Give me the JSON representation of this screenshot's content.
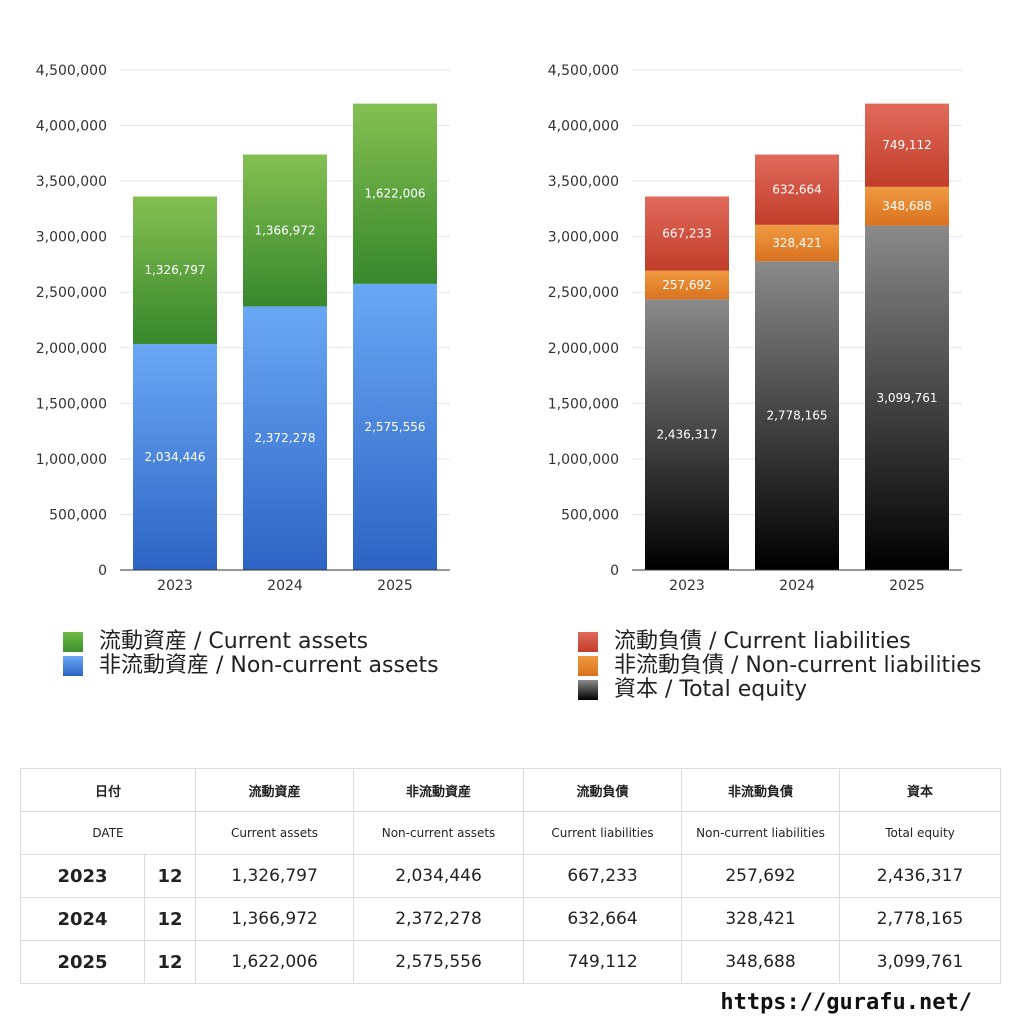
{
  "chart_data": [
    {
      "type": "bar",
      "stacked": true,
      "categories": [
        "2023",
        "2024",
        "2025"
      ],
      "ylim": [
        0,
        4500000
      ],
      "yticks": [
        "0",
        "500,000",
        "1,000,000",
        "1,500,000",
        "2,000,000",
        "2,500,000",
        "3,000,000",
        "3,500,000",
        "4,000,000",
        "4,500,000"
      ],
      "series": [
        {
          "name": "非流動資産 / Non-current assets",
          "values": [
            2034446,
            2372278,
            2575556
          ],
          "labels": [
            "2,034,446",
            "2,372,278",
            "2,575,556"
          ],
          "color_top": "#6aa8f5",
          "color_bottom": "#2d64c4"
        },
        {
          "name": "流動資産 / Current assets",
          "values": [
            1326797,
            1366972,
            1622006
          ],
          "labels": [
            "1,326,797",
            "1,366,972",
            "1,622,006"
          ],
          "color_top": "#84c052",
          "color_bottom": "#37872c"
        }
      ],
      "legend": [
        {
          "label": "流動資産 / Current assets",
          "color": "#4fa23a"
        },
        {
          "label": "非流動資産 / Non-current assets",
          "color": "#4b8be0"
        }
      ]
    },
    {
      "type": "bar",
      "stacked": true,
      "categories": [
        "2023",
        "2024",
        "2025"
      ],
      "ylim": [
        0,
        4500000
      ],
      "yticks": [
        "0",
        "500,000",
        "1,000,000",
        "1,500,000",
        "2,000,000",
        "2,500,000",
        "3,000,000",
        "3,500,000",
        "4,000,000",
        "4,500,000"
      ],
      "series": [
        {
          "name": "資本 / Total equity",
          "values": [
            2436317,
            2778165,
            3099761
          ],
          "labels": [
            "2,436,317",
            "2,778,165",
            "3,099,761"
          ],
          "color_top": "#8a8a8a",
          "color_bottom": "#000000"
        },
        {
          "name": "非流動負債 / Non-current liabilities",
          "values": [
            257692,
            328421,
            348688
          ],
          "labels": [
            "257,692",
            "328,421",
            "348,688"
          ],
          "color_top": "#f09a40",
          "color_bottom": "#d97220"
        },
        {
          "name": "流動負債 / Current liabilities",
          "values": [
            667233,
            632664,
            749112
          ],
          "labels": [
            "667,233",
            "632,664",
            "749,112"
          ],
          "color_top": "#e06a5a",
          "color_bottom": "#c23d2a"
        }
      ],
      "legend": [
        {
          "label": "流動負債 / Current liabilities",
          "color": "#d44a38"
        },
        {
          "label": "非流動負債 / Non-current liabilities",
          "color": "#e8862e"
        },
        {
          "label": "資本 / Total equity",
          "color": "#333333"
        }
      ]
    }
  ],
  "table": {
    "header_jp": [
      "日付",
      "流動資産",
      "非流動資産",
      "流動負債",
      "非流動負債",
      "資本"
    ],
    "header_en": [
      "DATE",
      "Current assets",
      "Non-current assets",
      "Current liabilities",
      "Non-current liabilities",
      "Total equity"
    ],
    "rows": [
      {
        "year": "2023",
        "month": "12",
        "values": [
          "1,326,797",
          "2,034,446",
          "667,233",
          "257,692",
          "2,436,317"
        ]
      },
      {
        "year": "2024",
        "month": "12",
        "values": [
          "1,366,972",
          "2,372,278",
          "632,664",
          "328,421",
          "2,778,165"
        ]
      },
      {
        "year": "2025",
        "month": "12",
        "values": [
          "1,622,006",
          "2,575,556",
          "749,112",
          "348,688",
          "3,099,761"
        ]
      }
    ]
  },
  "footer": {
    "url": "https://gurafu.net/"
  }
}
